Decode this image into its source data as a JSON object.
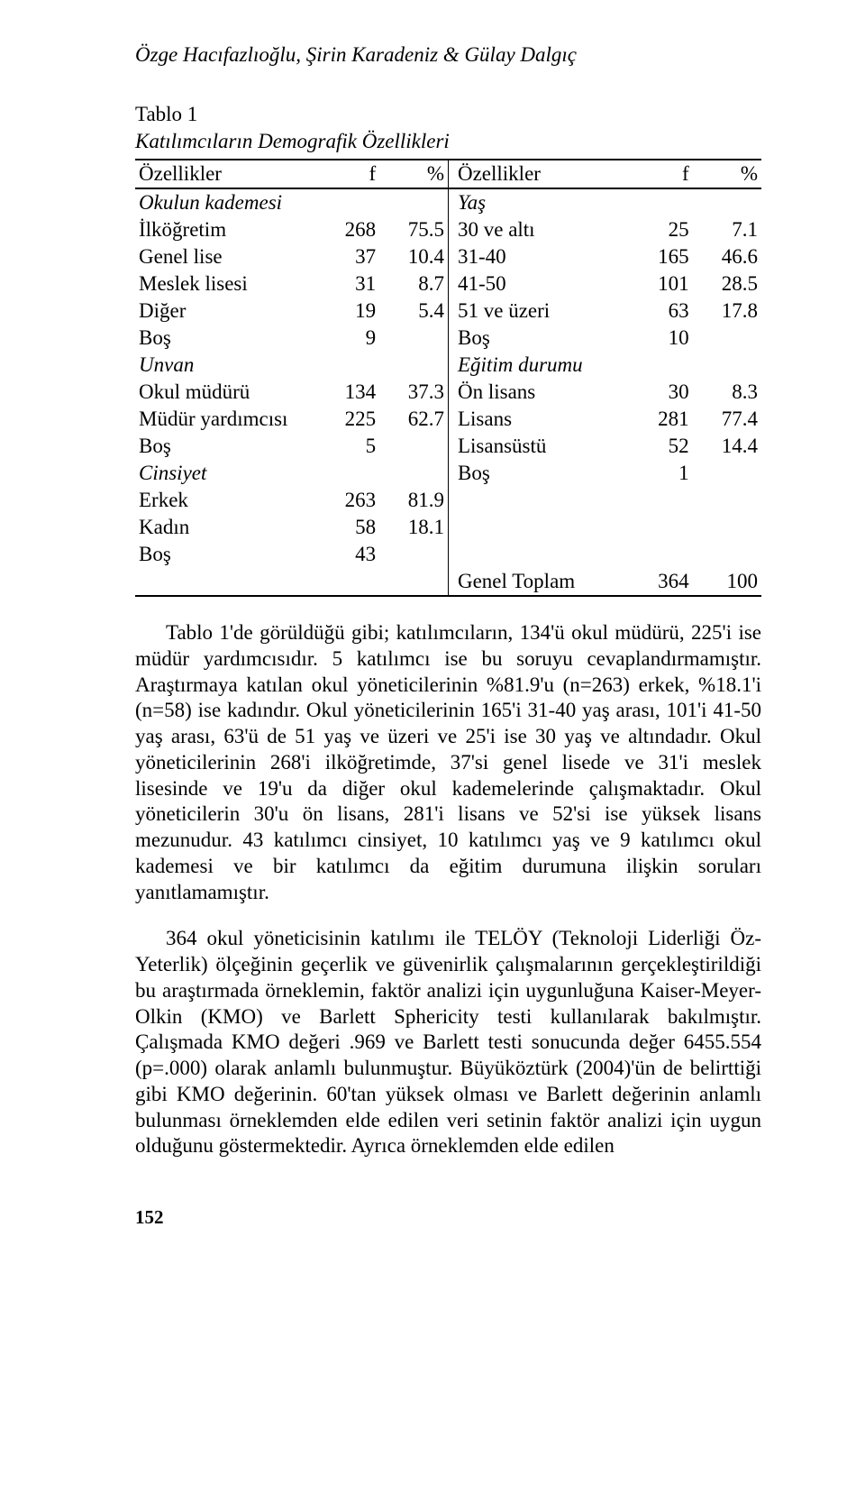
{
  "header": {
    "authors": "Özge Hacıfazlıoğlu, Şirin Karadeniz & Gülay Dalgıç"
  },
  "table1": {
    "label": "Tablo 1",
    "caption": "Katılımcıların Demografik Özellikleri",
    "left_head": {
      "name": "Özellikler",
      "f": "f",
      "pct": "%"
    },
    "right_head": {
      "name": "Özellikler",
      "f": "f",
      "pct": "%"
    },
    "left_rows": [
      {
        "name": "Okulun kademesi",
        "f": "",
        "pct": "",
        "italic": true
      },
      {
        "name": "İlköğretim",
        "f": "268",
        "pct": "75.5"
      },
      {
        "name": "Genel lise",
        "f": "37",
        "pct": "10.4"
      },
      {
        "name": "Meslek lisesi",
        "f": "31",
        "pct": "8.7"
      },
      {
        "name": "Diğer",
        "f": "19",
        "pct": "5.4"
      },
      {
        "name": "Boş",
        "f": "9",
        "pct": ""
      },
      {
        "name": "Unvan",
        "f": "",
        "pct": "",
        "italic": true
      },
      {
        "name": "Okul müdürü",
        "f": "134",
        "pct": "37.3"
      },
      {
        "name": "Müdür yardımcısı",
        "f": "225",
        "pct": "62.7"
      },
      {
        "name": "Boş",
        "f": "5",
        "pct": ""
      },
      {
        "name": "Cinsiyet",
        "f": "",
        "pct": "",
        "italic": true
      },
      {
        "name": "Erkek",
        "f": "263",
        "pct": "81.9"
      },
      {
        "name": "Kadın",
        "f": "58",
        "pct": "18.1"
      },
      {
        "name": "Boş",
        "f": "43",
        "pct": ""
      },
      {
        "name": "",
        "f": "",
        "pct": ""
      }
    ],
    "right_rows": [
      {
        "name": "Yaş",
        "f": "",
        "pct": "",
        "italic": true
      },
      {
        "name": "30 ve altı",
        "f": "25",
        "pct": "7.1"
      },
      {
        "name": "31-40",
        "f": "165",
        "pct": "46.6"
      },
      {
        "name": "41-50",
        "f": "101",
        "pct": "28.5"
      },
      {
        "name": "51 ve üzeri",
        "f": "63",
        "pct": "17.8"
      },
      {
        "name": "Boş",
        "f": "10",
        "pct": ""
      },
      {
        "name": "Eğitim durumu",
        "f": "",
        "pct": "",
        "italic": true
      },
      {
        "name": "Ön lisans",
        "f": "30",
        "pct": "8.3"
      },
      {
        "name": "Lisans",
        "f": "281",
        "pct": "77.4"
      },
      {
        "name": "Lisansüstü",
        "f": "52",
        "pct": "14.4"
      },
      {
        "name": "Boş",
        "f": "1",
        "pct": ""
      },
      {
        "name": "",
        "f": "",
        "pct": ""
      },
      {
        "name": "",
        "f": "",
        "pct": ""
      },
      {
        "name": "",
        "f": "",
        "pct": ""
      },
      {
        "name": "Genel Toplam",
        "f": "364",
        "pct": "100"
      }
    ]
  },
  "paragraphs": {
    "p1": "Tablo 1'de görüldüğü gibi; katılımcıların, 134'ü okul müdürü, 225'i ise müdür yardımcısıdır. 5 katılımcı ise bu soruyu cevaplandırmamıştır. Araştırmaya katılan okul yöneticilerinin %81.9'u (n=263) erkek, %18.1'i (n=58) ise kadındır. Okul yöneticilerinin 165'i 31-40 yaş arası, 101'i 41-50 yaş arası, 63'ü de 51 yaş ve üzeri ve 25'i ise 30 yaş ve altındadır. Okul yöneticilerinin 268'i ilköğretimde, 37'si genel lisede ve 31'i meslek lisesinde ve 19'u da diğer okul kademelerinde çalışmaktadır. Okul yöneticilerin 30'u ön lisans, 281'i lisans ve 52'si ise yüksek lisans mezunudur. 43 katılımcı cinsiyet, 10 katılımcı yaş ve 9 katılımcı okul kademesi ve bir katılımcı da eğitim durumuna ilişkin soruları yanıtlamamıştır.",
    "p2": "364 okul yöneticisinin katılımı ile TELÖY (Teknoloji Liderliği Öz-Yeterlik) ölçeğinin geçerlik ve güvenirlik çalışmalarının gerçekleştirildiği bu araştırmada örneklemin, faktör analizi için uygunluğuna Kaiser-Meyer-Olkin (KMO) ve Barlett Sphericity testi kullanılarak bakılmıştır. Çalışmada KMO değeri .969 ve Barlett testi sonucunda değer 6455.554 (p=.000) olarak anlamlı bulunmuştur. Büyüköztürk (2004)'ün de belirttiği gibi KMO değerinin. 60'tan yüksek olması ve Barlett değerinin anlamlı bulunması örneklemden elde edilen veri setinin faktör analizi için uygun olduğunu göstermektedir. Ayrıca örneklemden elde edilen"
  },
  "page_number": "152"
}
